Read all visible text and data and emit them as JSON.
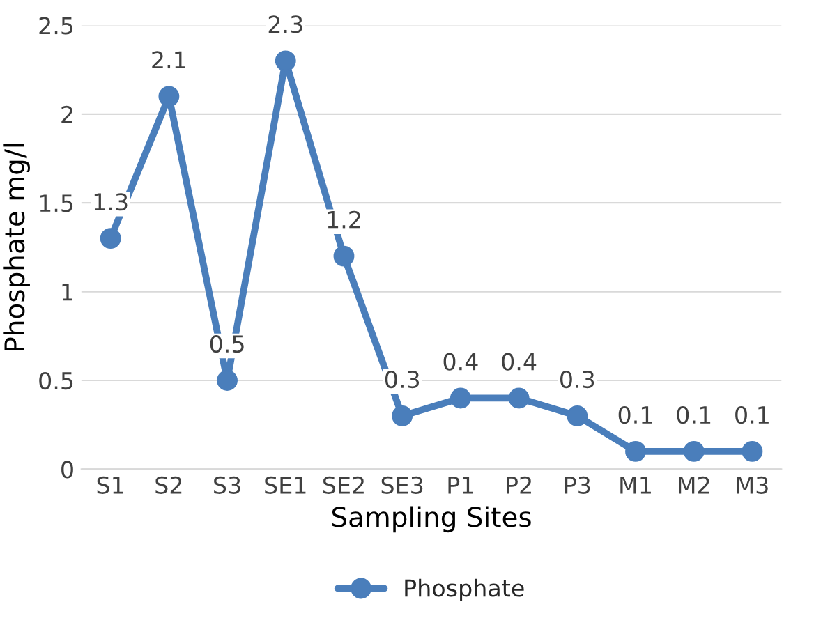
{
  "chart_data": {
    "type": "line",
    "xlabel": "Sampling Sites",
    "ylabel": "Phosphate mg/l",
    "categories": [
      "S1",
      "S2",
      "S3",
      "SE1",
      "SE2",
      "SE3",
      "P1",
      "P2",
      "P3",
      "M1",
      "M2",
      "M3"
    ],
    "series": [
      {
        "name": "Phosphate",
        "color": "#4a7ebb",
        "values": [
          1.3,
          2.1,
          0.5,
          2.3,
          1.2,
          0.3,
          0.4,
          0.4,
          0.3,
          0.1,
          0.1,
          0.1
        ]
      }
    ],
    "ylim": [
      0,
      2.5
    ],
    "yticks": [
      0,
      {
        "value": 0.5,
        "label": "0.5"
      },
      1,
      {
        "value": 1.5,
        "label": "1.5"
      },
      2,
      {
        "value": 2.5,
        "label": "2.5"
      }
    ],
    "grid": "y",
    "legend": "bottom",
    "marker": "circle",
    "line_style": "solid",
    "data_labels": true
  }
}
